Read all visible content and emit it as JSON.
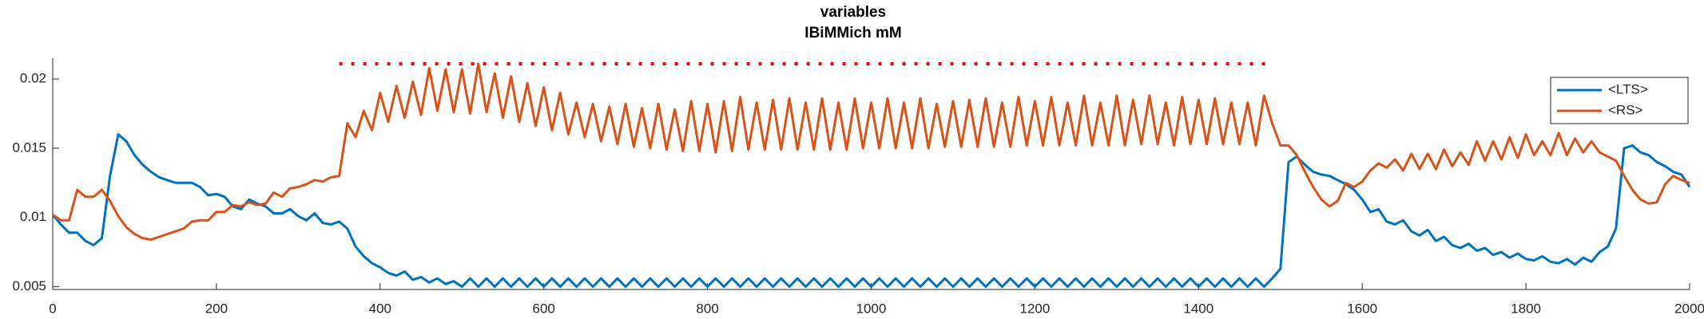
{
  "chart_data": {
    "type": "line",
    "title": "variables",
    "subtitle": "IBiMMich mM",
    "x": [
      0,
      10,
      20,
      30,
      40,
      50,
      60,
      70,
      80,
      90,
      100,
      110,
      120,
      130,
      140,
      150,
      160,
      170,
      180,
      190,
      200,
      210,
      220,
      230,
      240,
      250,
      260,
      270,
      280,
      290,
      300,
      310,
      320,
      330,
      340,
      350,
      360,
      370,
      380,
      390,
      400,
      410,
      420,
      430,
      440,
      450,
      460,
      470,
      480,
      490,
      500,
      510,
      520,
      530,
      540,
      550,
      560,
      570,
      580,
      590,
      600,
      610,
      620,
      630,
      640,
      650,
      660,
      670,
      680,
      690,
      700,
      710,
      720,
      730,
      740,
      750,
      760,
      770,
      780,
      790,
      800,
      810,
      820,
      830,
      840,
      850,
      860,
      870,
      880,
      890,
      900,
      910,
      920,
      930,
      940,
      950,
      960,
      970,
      980,
      990,
      1000,
      1010,
      1020,
      1030,
      1040,
      1050,
      1060,
      1070,
      1080,
      1090,
      1100,
      1110,
      1120,
      1130,
      1140,
      1150,
      1160,
      1170,
      1180,
      1190,
      1200,
      1210,
      1220,
      1230,
      1240,
      1250,
      1260,
      1270,
      1280,
      1290,
      1300,
      1310,
      1320,
      1330,
      1340,
      1350,
      1360,
      1370,
      1380,
      1390,
      1400,
      1410,
      1420,
      1430,
      1440,
      1450,
      1460,
      1470,
      1480,
      1490,
      1500,
      1510,
      1520,
      1530,
      1540,
      1550,
      1560,
      1570,
      1580,
      1590,
      1600,
      1610,
      1620,
      1630,
      1640,
      1650,
      1660,
      1670,
      1680,
      1690,
      1700,
      1710,
      1720,
      1730,
      1740,
      1750,
      1760,
      1770,
      1780,
      1790,
      1800,
      1810,
      1820,
      1830,
      1840,
      1850,
      1860,
      1870,
      1880,
      1890,
      1900,
      1910,
      1920,
      1930,
      1940,
      1950,
      1960,
      1970,
      1980,
      1990,
      2000
    ],
    "series": [
      {
        "name": "<LTS>",
        "color": "#0072bd",
        "values": [
          0.0102,
          0.0095,
          0.0089,
          0.0089,
          0.0083,
          0.008,
          0.0085,
          0.013,
          0.016,
          0.0155,
          0.0145,
          0.0138,
          0.0133,
          0.0129,
          0.0127,
          0.0125,
          0.0125,
          0.0125,
          0.0122,
          0.0116,
          0.0117,
          0.0115,
          0.0108,
          0.0106,
          0.0113,
          0.011,
          0.0108,
          0.0103,
          0.0103,
          0.0106,
          0.0101,
          0.0098,
          0.0103,
          0.0096,
          0.0095,
          0.0097,
          0.0092,
          0.0079,
          0.0072,
          0.0067,
          0.0064,
          0.006,
          0.0058,
          0.0061,
          0.0055,
          0.0057,
          0.0053,
          0.0056,
          0.0052,
          0.0054,
          0.005,
          0.0056,
          0.005,
          0.0056,
          0.005,
          0.0056,
          0.005,
          0.0056,
          0.005,
          0.0056,
          0.005,
          0.0056,
          0.005,
          0.0056,
          0.005,
          0.0056,
          0.005,
          0.0056,
          0.005,
          0.0056,
          0.005,
          0.0056,
          0.005,
          0.0056,
          0.005,
          0.0056,
          0.005,
          0.0056,
          0.005,
          0.0056,
          0.005,
          0.0056,
          0.005,
          0.0056,
          0.005,
          0.0056,
          0.005,
          0.0056,
          0.005,
          0.0056,
          0.005,
          0.0056,
          0.005,
          0.0056,
          0.005,
          0.0056,
          0.005,
          0.0056,
          0.005,
          0.0056,
          0.005,
          0.0056,
          0.005,
          0.0056,
          0.005,
          0.0056,
          0.005,
          0.0056,
          0.005,
          0.0056,
          0.005,
          0.0056,
          0.005,
          0.0056,
          0.005,
          0.0056,
          0.005,
          0.0056,
          0.005,
          0.0056,
          0.005,
          0.0056,
          0.005,
          0.0056,
          0.005,
          0.0056,
          0.005,
          0.0056,
          0.005,
          0.0056,
          0.005,
          0.0056,
          0.005,
          0.0056,
          0.005,
          0.0056,
          0.005,
          0.0056,
          0.005,
          0.0056,
          0.005,
          0.0056,
          0.005,
          0.0056,
          0.005,
          0.0056,
          0.005,
          0.0056,
          0.005,
          0.0056,
          0.0063,
          0.014,
          0.0144,
          0.0138,
          0.0133,
          0.0131,
          0.013,
          0.0127,
          0.0124,
          0.012,
          0.0113,
          0.0104,
          0.0106,
          0.0097,
          0.0095,
          0.0098,
          0.009,
          0.0087,
          0.0091,
          0.0083,
          0.0086,
          0.008,
          0.0078,
          0.0081,
          0.0076,
          0.0078,
          0.0073,
          0.0075,
          0.0071,
          0.0074,
          0.007,
          0.0069,
          0.0072,
          0.0068,
          0.0067,
          0.007,
          0.0066,
          0.0071,
          0.0068,
          0.0075,
          0.0079,
          0.0092,
          0.015,
          0.0152,
          0.0147,
          0.0145,
          0.014,
          0.0137,
          0.0133,
          0.0131,
          0.0122
        ]
      },
      {
        "name": "<RS>",
        "color": "#d95319",
        "values": [
          0.0102,
          0.0098,
          0.0098,
          0.012,
          0.0115,
          0.0115,
          0.012,
          0.0112,
          0.0101,
          0.0093,
          0.0088,
          0.0085,
          0.0084,
          0.0086,
          0.0088,
          0.009,
          0.0092,
          0.0097,
          0.0098,
          0.0098,
          0.0104,
          0.0104,
          0.0109,
          0.0108,
          0.0111,
          0.0109,
          0.011,
          0.0118,
          0.0115,
          0.0121,
          0.0122,
          0.0124,
          0.0127,
          0.0126,
          0.0129,
          0.013,
          0.0168,
          0.0158,
          0.0177,
          0.0163,
          0.019,
          0.0169,
          0.0195,
          0.0172,
          0.0198,
          0.0174,
          0.0208,
          0.0177,
          0.0207,
          0.0176,
          0.0207,
          0.0175,
          0.0211,
          0.0176,
          0.0204,
          0.0172,
          0.0202,
          0.0169,
          0.0197,
          0.0166,
          0.0194,
          0.0163,
          0.019,
          0.016,
          0.0183,
          0.0158,
          0.0182,
          0.0155,
          0.018,
          0.0153,
          0.0182,
          0.0151,
          0.0179,
          0.015,
          0.0182,
          0.0149,
          0.0178,
          0.0148,
          0.0184,
          0.0148,
          0.0182,
          0.0147,
          0.0184,
          0.0148,
          0.0187,
          0.0149,
          0.0183,
          0.0149,
          0.0185,
          0.0149,
          0.0186,
          0.0149,
          0.0183,
          0.0149,
          0.0186,
          0.0149,
          0.0183,
          0.0149,
          0.0186,
          0.015,
          0.0183,
          0.015,
          0.0186,
          0.015,
          0.0183,
          0.015,
          0.0186,
          0.015,
          0.0182,
          0.0151,
          0.0184,
          0.0151,
          0.0185,
          0.0151,
          0.0186,
          0.0151,
          0.0183,
          0.0151,
          0.0187,
          0.0152,
          0.0184,
          0.0152,
          0.0187,
          0.0152,
          0.0183,
          0.0152,
          0.0188,
          0.0152,
          0.0183,
          0.0152,
          0.0188,
          0.0152,
          0.0185,
          0.0153,
          0.0188,
          0.0153,
          0.0183,
          0.0152,
          0.0187,
          0.0153,
          0.0185,
          0.0153,
          0.0186,
          0.0153,
          0.0183,
          0.0153,
          0.0183,
          0.0152,
          0.0188,
          0.0168,
          0.0152,
          0.0152,
          0.0145,
          0.0133,
          0.0122,
          0.0113,
          0.0108,
          0.0112,
          0.0125,
          0.0122,
          0.0126,
          0.0134,
          0.0139,
          0.0136,
          0.0142,
          0.0134,
          0.0146,
          0.0135,
          0.0146,
          0.0135,
          0.0149,
          0.0137,
          0.0147,
          0.0138,
          0.0155,
          0.0141,
          0.0155,
          0.0142,
          0.0158,
          0.0143,
          0.016,
          0.0145,
          0.0155,
          0.0145,
          0.0161,
          0.0145,
          0.0157,
          0.0147,
          0.0155,
          0.0147,
          0.0144,
          0.0141,
          0.013,
          0.012,
          0.0113,
          0.011,
          0.0111,
          0.0124,
          0.013,
          0.0127,
          0.0125
        ]
      }
    ],
    "reference_line": {
      "x": [
        350,
        1490
      ],
      "y": 0.0211,
      "color": "#ff0000"
    },
    "xlim": [
      0,
      2000
    ],
    "xticks": [
      0,
      200,
      400,
      600,
      800,
      1000,
      1200,
      1400,
      1600,
      1800,
      2000
    ],
    "ylim": [
      0.0048,
      0.0215
    ],
    "yticks": [
      0.005,
      0.01,
      0.015,
      0.02
    ],
    "legend": "northeast",
    "grid": false
  }
}
